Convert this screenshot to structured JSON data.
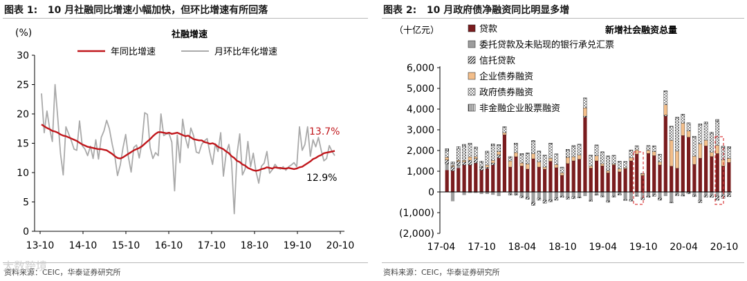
{
  "left_panel": {
    "title_prefix": "图表 1:",
    "title_text": "10 月社融同比增速小幅加快，但环比增速有所回落",
    "source": "资料来源：CEIC，华泰证券研究所"
  },
  "right_panel": {
    "title_prefix": "图表 2:",
    "title_text": "10 月政府债净融资同比明显多增",
    "source": "资料来源：CEIC，华泰证券研究所"
  },
  "watermark": "大数跨境",
  "colors": {
    "yoy": "#c0161b",
    "mom": "#a9a9a9",
    "loan": "#7a1c1e",
    "entrusted": "#9d9d9d",
    "bond": "#f3be8a",
    "highlight": "#d9393b"
  },
  "chart_data": [
    {
      "type": "line",
      "title": "社融增速",
      "ylabel": "(%)",
      "ylim": [
        0,
        30
      ],
      "yticks": [
        "0",
        "5",
        "10",
        "15",
        "20",
        "25",
        "30"
      ],
      "xticks": [
        "13-10",
        "14-10",
        "15-10",
        "16-10",
        "17-10",
        "18-10",
        "19-10",
        "20-10"
      ],
      "grid": false,
      "legend_position": "top",
      "annotations": {
        "yoy_last": "13.7%",
        "mom_last": "12.9%"
      },
      "series": [
        {
          "name": "年同比增速",
          "values": [
            18.2,
            17.9,
            17.6,
            17.4,
            17.1,
            17.0,
            16.8,
            16.5,
            16.3,
            16.2,
            16.0,
            15.8,
            15.6,
            15.4,
            15.1,
            14.8,
            14.6,
            14.4,
            14.3,
            14.2,
            14.1,
            14.0,
            14.0,
            13.9,
            13.8,
            13.5,
            13.2,
            12.8,
            12.5,
            12.4,
            12.6,
            12.9,
            13.2,
            13.5,
            13.8,
            14.0,
            14.2,
            14.5,
            14.9,
            15.3,
            15.7,
            16.2,
            16.6,
            16.9,
            16.9,
            16.8,
            16.7,
            16.8,
            16.6,
            16.7,
            16.8,
            16.6,
            16.4,
            16.2,
            16.3,
            16.0,
            15.7,
            15.6,
            15.5,
            15.5,
            15.2,
            15.1,
            14.9,
            15.0,
            14.8,
            14.4,
            14.2,
            14.0,
            13.6,
            13.3,
            12.8,
            12.5,
            12.0,
            11.8,
            11.4,
            11.2,
            10.8,
            10.6,
            10.4,
            10.3,
            10.4,
            10.6,
            10.7,
            10.9,
            10.8,
            10.7,
            10.9,
            10.8,
            10.8,
            10.7,
            10.7,
            10.8,
            10.7,
            10.6,
            10.7,
            10.9,
            11.0,
            11.3,
            11.6,
            11.9,
            12.3,
            12.5,
            12.8,
            13.0,
            13.3,
            13.4,
            13.5,
            13.6,
            13.7
          ]
        },
        {
          "name": "月环比年化增速",
          "values": [
            23.5,
            16.8,
            20.5,
            17.5,
            15.3,
            25.0,
            19.2,
            13.2,
            9.6,
            17.8,
            16.6,
            15.4,
            14.0,
            13.8,
            18.8,
            14.6,
            14.0,
            12.9,
            14.5,
            12.4,
            15.6,
            12.3,
            16.0,
            17.1,
            18.9,
            17.5,
            14.9,
            12.8,
            9.5,
            11.3,
            14.2,
            16.5,
            12.7,
            10.1,
            14.3,
            14.7,
            12.5,
            15.2,
            20.2,
            19.9,
            14.3,
            12.4,
            13.4,
            12.9,
            20.0,
            16.3,
            16.6,
            16.6,
            15.2,
            6.9,
            16.4,
            11.7,
            19.1,
            15.9,
            14.2,
            17.6,
            16.3,
            13.5,
            13.3,
            14.8,
            15.4,
            15.8,
            13.4,
            11.4,
            14.9,
            13.6,
            16.8,
            9.4,
            13.3,
            14.8,
            11.8,
            3.0,
            13.2,
            16.6,
            9.6,
            10.6,
            15.3,
            11.0,
            13.3,
            10.2,
            8.2,
            11.1,
            11.6,
            13.6,
            9.9,
            10.5,
            11.4,
            10.8,
            10.6,
            11.0,
            10.4,
            11.0,
            11.3,
            11.7,
            11.0,
            17.8,
            13.8,
            14.8,
            17.8,
            12.8,
            15.6,
            14.4,
            16.0,
            13.8,
            12.0,
            12.4,
            14.6,
            13.6,
            12.9
          ]
        }
      ]
    },
    {
      "type": "bar",
      "stacked": true,
      "title": "新增社会融资总量",
      "ylabel": "（十亿元）",
      "ylim": [
        -2000,
        6000
      ],
      "yticks": [
        "(2,000)",
        "(1,000)",
        "0",
        "1,000",
        "2,000",
        "3,000",
        "4,000",
        "5,000",
        "6,000"
      ],
      "xticks": [
        "17-04",
        "17-10",
        "18-04",
        "18-10",
        "19-04",
        "19-10",
        "20-04",
        "20-10"
      ],
      "legend_position": "top-left",
      "series": [
        {
          "name": "贷款",
          "values": [
            1050,
            1020,
            1150,
            1300,
            1300,
            1390,
            1050,
            1130,
            1300,
            1640,
            2760,
            1200,
            1700,
            1250,
            1100,
            1600,
            1200,
            1100,
            1480,
            1170,
            800,
            1370,
            1500,
            1580,
            3600,
            1150,
            1500,
            1260,
            920,
            1300,
            970,
            1120,
            1500,
            1830,
            790,
            1860,
            1750,
            1300,
            3660,
            1240,
            1140,
            2720,
            2640,
            1330,
            1630,
            2220,
            1710,
            1850,
            1250,
            1420
          ]
        },
        {
          "name": "委托贷款及未贴现的银行承兑汇票",
          "values": [
            300,
            -450,
            140,
            -150,
            -50,
            -50,
            -100,
            -100,
            -140,
            -200,
            0,
            -100,
            -100,
            -200,
            -260,
            -500,
            -300,
            -400,
            -380,
            -280,
            -200,
            -250,
            -230,
            -250,
            -200,
            -400,
            -130,
            -200,
            -430,
            -200,
            -100,
            -370,
            -380,
            -180,
            -280,
            -200,
            -120,
            -300,
            -200,
            -500,
            -100,
            -160,
            -20,
            -150,
            -400,
            -150,
            -150,
            -200,
            -150,
            -100
          ]
        },
        {
          "name": "信托贷款",
          "values": [
            200,
            200,
            180,
            150,
            230,
            220,
            140,
            60,
            100,
            160,
            0,
            -50,
            -60,
            -80,
            -100,
            -150,
            -100,
            -140,
            -100,
            -120,
            -60,
            -100,
            -100,
            -40,
            60,
            -50,
            -30,
            -40,
            -70,
            -50,
            -50,
            -40,
            -60,
            -30,
            -90,
            -60,
            -90,
            -100,
            50,
            -30,
            -80,
            -40,
            -70,
            -80,
            -120,
            -100,
            -110,
            -200,
            -160,
            -130
          ]
        },
        {
          "name": "企业债券融资",
          "values": [
            120,
            50,
            60,
            70,
            160,
            90,
            20,
            110,
            120,
            140,
            100,
            300,
            200,
            150,
            250,
            250,
            250,
            100,
            150,
            150,
            120,
            300,
            200,
            200,
            400,
            100,
            240,
            100,
            100,
            50,
            150,
            50,
            150,
            200,
            80,
            150,
            200,
            150,
            500,
            1250,
            830,
            600,
            300,
            400,
            700,
            280,
            200,
            400,
            300,
            200
          ]
        },
        {
          "name": "政府债券融资",
          "values": [
            300,
            100,
            560,
            700,
            600,
            400,
            200,
            600,
            720,
            300,
            250,
            150,
            400,
            400,
            500,
            600,
            500,
            550,
            700,
            500,
            250,
            350,
            500,
            500,
            450,
            500,
            500,
            550,
            700,
            400,
            330,
            270,
            350,
            180,
            0,
            200,
            250,
            350,
            650,
            650,
            1600,
            400,
            350,
            900,
            900,
            800,
            900,
            1150,
            600,
            500
          ]
        },
        {
          "name": "非金融企业股票融资",
          "values": [
            120,
            80,
            100,
            80,
            70,
            70,
            80,
            70,
            80,
            50,
            50,
            60,
            60,
            60,
            40,
            40,
            30,
            30,
            30,
            20,
            30,
            40,
            40,
            30,
            30,
            30,
            30,
            30,
            20,
            20,
            30,
            30,
            30,
            20,
            30,
            30,
            30,
            20,
            30,
            40,
            40,
            40,
            50,
            60,
            60,
            80,
            80,
            100,
            60,
            70
          ]
        }
      ]
    }
  ]
}
